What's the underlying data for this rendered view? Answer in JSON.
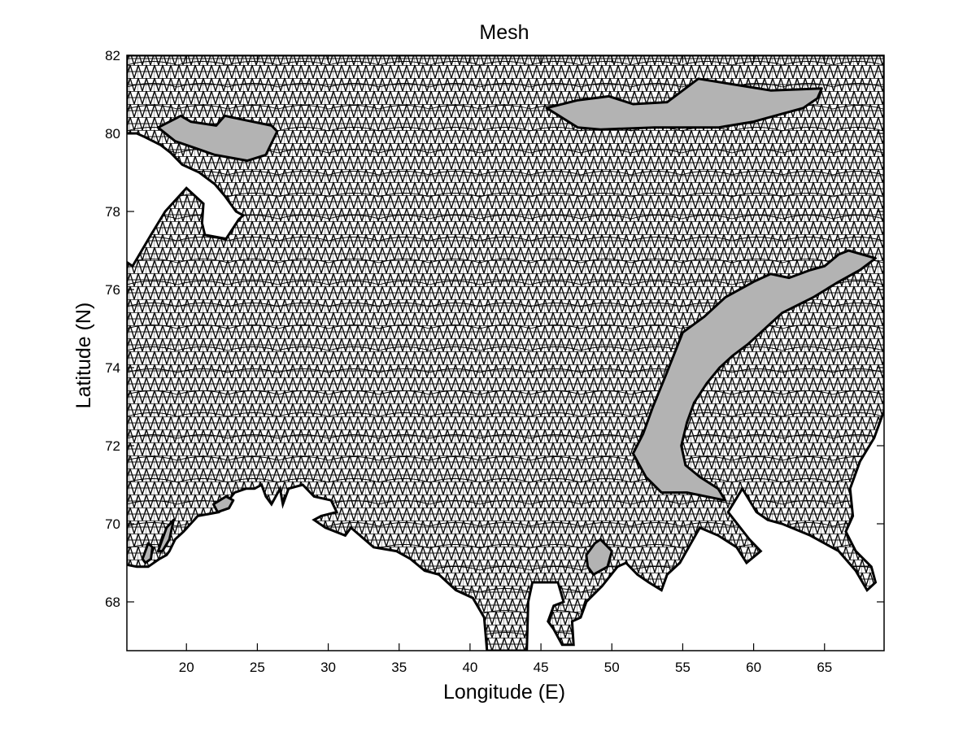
{
  "chart_data": {
    "type": "mesh",
    "title": "Mesh",
    "xlabel": "Longitude (E)",
    "ylabel": "Latitude (N)",
    "xlim": [
      15.8,
      69.2
    ],
    "ylim": [
      66.75,
      82
    ],
    "xticks": [
      20,
      25,
      30,
      35,
      40,
      45,
      50,
      55,
      60,
      65
    ],
    "yticks": [
      68,
      70,
      72,
      74,
      76,
      78,
      80,
      82
    ],
    "grid": false,
    "colors": {
      "mesh_line": "#000000",
      "island_fill": "#b3b3b3",
      "background": "#ffffff"
    },
    "domain_boundary": [
      [
        15.8,
        82.0
      ],
      [
        69.2,
        82.0
      ],
      [
        69.2,
        72.9
      ],
      [
        68.5,
        72.2
      ],
      [
        67.5,
        71.6
      ],
      [
        66.8,
        70.9
      ],
      [
        67.0,
        70.2
      ],
      [
        66.5,
        69.8
      ],
      [
        67.2,
        69.3
      ],
      [
        68.3,
        68.9
      ],
      [
        68.6,
        68.5
      ],
      [
        68.0,
        68.3
      ],
      [
        67.2,
        68.8
      ],
      [
        66.0,
        69.3
      ],
      [
        64.0,
        69.7
      ],
      [
        62.0,
        70.0
      ],
      [
        61.0,
        70.1
      ],
      [
        60.2,
        70.3
      ],
      [
        59.2,
        70.9
      ],
      [
        58.2,
        70.3
      ],
      [
        59.7,
        69.6
      ],
      [
        60.5,
        69.3
      ],
      [
        59.5,
        69.0
      ],
      [
        58.8,
        69.4
      ],
      [
        57.5,
        69.7
      ],
      [
        56.2,
        69.9
      ],
      [
        54.8,
        69.0
      ],
      [
        53.9,
        68.7
      ],
      [
        53.5,
        68.3
      ],
      [
        52.6,
        68.5
      ],
      [
        51.8,
        68.7
      ],
      [
        51.0,
        69.0
      ],
      [
        50.4,
        68.9
      ],
      [
        49.3,
        68.4
      ],
      [
        48.2,
        68.0
      ],
      [
        47.8,
        67.6
      ],
      [
        47.2,
        67.5
      ],
      [
        47.3,
        66.9
      ],
      [
        46.5,
        66.9
      ],
      [
        45.9,
        67.3
      ],
      [
        45.5,
        67.5
      ],
      [
        45.9,
        67.9
      ],
      [
        46.6,
        68.0
      ],
      [
        46.2,
        68.5
      ],
      [
        45.6,
        68.5
      ],
      [
        44.4,
        68.5
      ],
      [
        44.1,
        68.0
      ],
      [
        44.0,
        66.75
      ],
      [
        41.2,
        66.75
      ],
      [
        41.0,
        67.6
      ],
      [
        40.2,
        68.1
      ],
      [
        39.0,
        68.3
      ],
      [
        37.8,
        68.7
      ],
      [
        36.8,
        68.8
      ],
      [
        35.8,
        69.1
      ],
      [
        34.8,
        69.3
      ],
      [
        33.2,
        69.4
      ],
      [
        31.6,
        69.9
      ],
      [
        31.2,
        69.7
      ],
      [
        30.5,
        69.8
      ],
      [
        29.8,
        69.9
      ],
      [
        29.0,
        70.1
      ],
      [
        29.5,
        70.2
      ],
      [
        30.6,
        70.3
      ],
      [
        30.2,
        70.6
      ],
      [
        29.0,
        70.7
      ],
      [
        28.2,
        71.0
      ],
      [
        27.2,
        70.9
      ],
      [
        26.8,
        70.5
      ],
      [
        26.6,
        70.9
      ],
      [
        26.0,
        70.5
      ],
      [
        25.6,
        70.7
      ],
      [
        25.3,
        71.0
      ],
      [
        24.8,
        70.9
      ],
      [
        24.2,
        70.9
      ],
      [
        23.4,
        70.8
      ],
      [
        22.3,
        70.3
      ],
      [
        20.8,
        70.2
      ],
      [
        19.8,
        69.8
      ],
      [
        19.2,
        69.6
      ],
      [
        18.8,
        69.3
      ],
      [
        18.6,
        69.2
      ],
      [
        18.1,
        69.1
      ],
      [
        17.3,
        68.9
      ],
      [
        16.5,
        68.9
      ],
      [
        15.8,
        68.95
      ],
      [
        15.8,
        76.7
      ],
      [
        16.2,
        76.6
      ],
      [
        17.5,
        77.4
      ],
      [
        18.5,
        78.0
      ],
      [
        20.0,
        78.6
      ],
      [
        21.2,
        78.2
      ],
      [
        21.1,
        77.7
      ],
      [
        21.3,
        77.4
      ],
      [
        22.8,
        77.3
      ],
      [
        23.7,
        77.8
      ],
      [
        24.0,
        77.9
      ],
      [
        23.5,
        78.0
      ],
      [
        22.7,
        78.4
      ],
      [
        22.0,
        78.7
      ],
      [
        20.9,
        79.0
      ],
      [
        19.7,
        79.2
      ],
      [
        18.9,
        79.5
      ],
      [
        18.2,
        79.7
      ],
      [
        17.1,
        79.9
      ],
      [
        16.5,
        80.0
      ],
      [
        15.8,
        80.0
      ]
    ],
    "islands": [
      [
        [
          18.0,
          80.15
        ],
        [
          19.6,
          80.45
        ],
        [
          20.3,
          80.3
        ],
        [
          22.1,
          80.2
        ],
        [
          22.7,
          80.45
        ],
        [
          24.0,
          80.35
        ],
        [
          26.0,
          80.2
        ],
        [
          26.4,
          80.05
        ],
        [
          25.6,
          79.45
        ],
        [
          24.3,
          79.3
        ],
        [
          22.0,
          79.45
        ],
        [
          19.2,
          79.8
        ]
      ],
      [
        [
          45.4,
          80.65
        ],
        [
          47.6,
          80.85
        ],
        [
          49.8,
          80.95
        ],
        [
          51.5,
          80.75
        ],
        [
          53.9,
          80.8
        ],
        [
          56.1,
          81.4
        ],
        [
          59.5,
          81.2
        ],
        [
          61.2,
          81.1
        ],
        [
          64.8,
          81.15
        ],
        [
          64.5,
          80.9
        ],
        [
          63.5,
          80.65
        ],
        [
          60.0,
          80.3
        ],
        [
          57.5,
          80.15
        ],
        [
          53.0,
          80.15
        ],
        [
          49.2,
          80.1
        ],
        [
          47.6,
          80.15
        ]
      ],
      [
        [
          51.5,
          71.8
        ],
        [
          52.2,
          72.3
        ],
        [
          52.9,
          73.0
        ],
        [
          53.8,
          73.8
        ],
        [
          55.0,
          74.9
        ],
        [
          56.5,
          75.3
        ],
        [
          58.0,
          75.8
        ],
        [
          60.0,
          76.2
        ],
        [
          61.2,
          76.4
        ],
        [
          62.5,
          76.3
        ],
        [
          64.0,
          76.5
        ],
        [
          65.0,
          76.6
        ],
        [
          66.0,
          76.9
        ],
        [
          66.7,
          77.0
        ],
        [
          68.6,
          76.8
        ],
        [
          67.5,
          76.5
        ],
        [
          66.0,
          76.2
        ],
        [
          64.2,
          75.8
        ],
        [
          62.0,
          75.4
        ],
        [
          60.8,
          75.0
        ],
        [
          59.6,
          74.6
        ],
        [
          58.5,
          74.3
        ],
        [
          57.6,
          74.0
        ],
        [
          56.7,
          73.6
        ],
        [
          55.8,
          73.1
        ],
        [
          55.3,
          72.6
        ],
        [
          54.9,
          72.0
        ],
        [
          55.2,
          71.5
        ],
        [
          56.2,
          71.2
        ],
        [
          57.5,
          70.9
        ],
        [
          58.0,
          70.6
        ],
        [
          55.3,
          70.8
        ],
        [
          53.5,
          70.8
        ],
        [
          52.4,
          71.2
        ]
      ],
      [
        [
          48.2,
          69.2
        ],
        [
          48.8,
          69.5
        ],
        [
          49.2,
          69.6
        ],
        [
          50.0,
          69.3
        ],
        [
          49.7,
          68.9
        ],
        [
          48.7,
          68.7
        ],
        [
          48.3,
          68.9
        ]
      ],
      [
        [
          16.9,
          69.1
        ],
        [
          17.3,
          69.5
        ],
        [
          17.6,
          69.4
        ],
        [
          17.5,
          69.1
        ],
        [
          17.1,
          69.0
        ]
      ],
      [
        [
          18.0,
          69.3
        ],
        [
          18.6,
          69.9
        ],
        [
          19.1,
          70.1
        ],
        [
          18.8,
          69.6
        ],
        [
          18.3,
          69.3
        ]
      ],
      [
        [
          21.9,
          70.5
        ],
        [
          22.8,
          70.7
        ],
        [
          23.3,
          70.6
        ],
        [
          23.0,
          70.4
        ],
        [
          22.2,
          70.3
        ]
      ]
    ]
  }
}
